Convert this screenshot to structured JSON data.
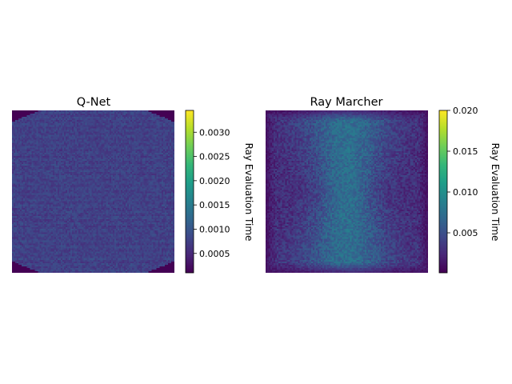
{
  "chart_data": [
    {
      "type": "heatmap",
      "title": "Q-Net",
      "colorbar": {
        "label": "Ray Evaluation Time",
        "min": 0.0001,
        "max": 0.00345,
        "ticks": [
          0.0005,
          0.001,
          0.0015,
          0.002,
          0.0025,
          0.003
        ],
        "tick_labels": [
          "0.0005",
          "0.0010",
          "0.0015",
          "0.0020",
          "0.0025",
          "0.0030"
        ]
      },
      "colormap": "viridis",
      "axes_visible": false,
      "pattern": "uniform ~0.0005–0.0010 over an octagon-like region; corners at minimum",
      "background_value": 0.0001,
      "typical_value": 0.00075
    },
    {
      "type": "heatmap",
      "title": "Ray Marcher",
      "colorbar": {
        "label": "Ray Evaluation Time",
        "min": 0.0001,
        "max": 0.02,
        "ticks": [
          0.005,
          0.01,
          0.015,
          0.02
        ],
        "tick_labels": [
          "0.005",
          "0.010",
          "0.015",
          "0.020"
        ]
      },
      "colormap": "viridis",
      "axes_visible": false,
      "pattern": "hourglass-shaped higher region in center (~0.008–0.011), lower toward edges (~0.002–0.004)",
      "background_value": 0.001,
      "typical_value": 0.005
    }
  ],
  "colors": {
    "viridis_stops": [
      "#440154",
      "#482878",
      "#3e4989",
      "#31688e",
      "#26828e",
      "#1f9e89",
      "#35b779",
      "#6ece58",
      "#b5de2b",
      "#fde725"
    ]
  }
}
